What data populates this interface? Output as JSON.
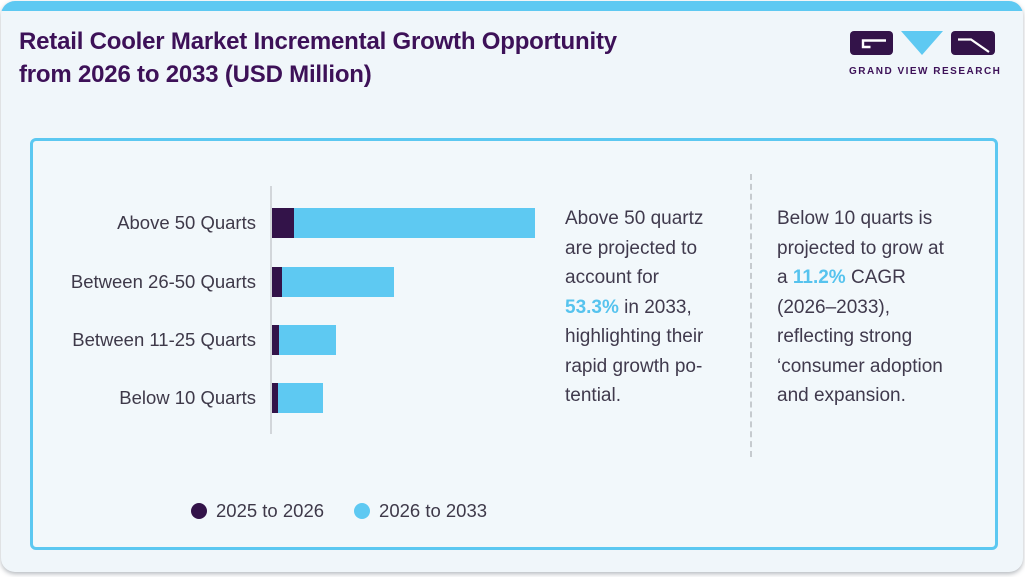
{
  "header": {
    "title_line1": "Retail Cooler Market Incremental Growth Opportunity",
    "title_line2": "from 2026 to 2033 (USD Million)",
    "logo_text": "GRAND VIEW RESEARCH"
  },
  "colors": {
    "accent_blue": "#5ec9f2",
    "dark_purple": "#331349",
    "title_purple": "#3d1158",
    "highlight_blue": "#56c3ee",
    "body_text": "#403a4d",
    "card_border": "#5cc8f1",
    "axis_grey": "#d2d6da",
    "page_background": "#f0f6fa"
  },
  "chart_data": {
    "type": "bar",
    "orientation": "horizontal",
    "stacked": true,
    "title": "Retail Cooler Market Incremental Growth Opportunity from 2026 to 2033 (USD Million)",
    "value_axis": "unlabeled (no ticks or gridlines shown); values below are relative widths estimated from pixels",
    "categories": [
      "Above 50 Quarts",
      "Between 26-50 Quarts",
      "Between 11-25 Quarts",
      "Below 10 Quarts"
    ],
    "series": [
      {
        "name": "2025 to 2026",
        "color": "#331349",
        "values": [
          22,
          10,
          7,
          6
        ]
      },
      {
        "name": "2026 to 2033",
        "color": "#5ec9f2",
        "values": [
          241,
          112,
          57,
          45
        ]
      }
    ],
    "legend_position": "bottom"
  },
  "annotations": [
    {
      "id": "above-50-note",
      "lines_before": [
        "Above 50 quartz",
        "are projected to",
        "account for"
      ],
      "highlight_prefix": "",
      "highlight": "53.3%",
      "highlight_suffix": " in 2033,",
      "lines_after": [
        "highlighting their",
        "rapid growth po-",
        "tential."
      ]
    },
    {
      "id": "below-10-note",
      "lines_before": [
        "Below 10 quarts is",
        "projected to grow at"
      ],
      "highlight_prefix": "a ",
      "highlight": "11.2%",
      "highlight_suffix": " CAGR",
      "lines_after": [
        "(2026–2033),",
        "reflecting strong",
        "‘consumer adoption",
        "and expansion."
      ]
    }
  ],
  "legend": {
    "items": [
      {
        "label": "2025 to 2026",
        "color": "#331349"
      },
      {
        "label": "2026 to 2033",
        "color": "#5ec9f2"
      }
    ]
  }
}
